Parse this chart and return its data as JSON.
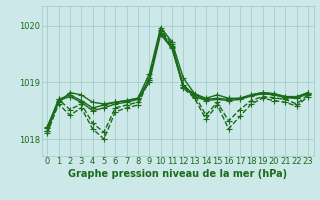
{
  "xlabel": "Graphe pression niveau de la mer (hPa)",
  "background_color": "#cce8e8",
  "grid_color": "#a0c8c8",
  "line_color": "#1a6b1a",
  "ylim": [
    1017.7,
    1020.35
  ],
  "xlim": [
    -0.5,
    23.5
  ],
  "yticks": [
    1018,
    1019,
    1020
  ],
  "xticks": [
    0,
    1,
    2,
    3,
    4,
    5,
    6,
    7,
    8,
    9,
    10,
    11,
    12,
    13,
    14,
    15,
    16,
    17,
    18,
    19,
    20,
    21,
    22,
    23
  ],
  "series": [
    [
      1018.15,
      1018.65,
      1018.82,
      1018.78,
      1018.65,
      1018.62,
      1018.65,
      1018.68,
      1018.72,
      1019.15,
      1019.97,
      1019.72,
      1019.08,
      1018.8,
      1018.72,
      1018.78,
      1018.72,
      1018.72,
      1018.78,
      1018.82,
      1018.8,
      1018.75,
      1018.75,
      1018.82
    ],
    [
      1018.2,
      1018.7,
      1018.78,
      1018.68,
      1018.55,
      1018.6,
      1018.65,
      1018.68,
      1018.72,
      1019.05,
      1019.88,
      1019.62,
      1018.95,
      1018.78,
      1018.7,
      1018.72,
      1018.7,
      1018.72,
      1018.78,
      1018.82,
      1018.8,
      1018.75,
      1018.72,
      1018.82
    ],
    [
      1018.22,
      1018.68,
      1018.75,
      1018.65,
      1018.5,
      1018.55,
      1018.62,
      1018.65,
      1018.7,
      1019.0,
      1019.85,
      1019.6,
      1018.92,
      1018.75,
      1018.68,
      1018.7,
      1018.68,
      1018.7,
      1018.76,
      1018.8,
      1018.78,
      1018.73,
      1018.72,
      1018.8
    ],
    [
      1018.15,
      1018.7,
      1018.52,
      1018.62,
      1018.28,
      1018.12,
      1018.55,
      1018.6,
      1018.65,
      1019.08,
      1019.93,
      1019.68,
      1018.95,
      1018.78,
      1018.42,
      1018.65,
      1018.32,
      1018.52,
      1018.68,
      1018.75,
      1018.73,
      1018.7,
      1018.62,
      1018.78
    ],
    [
      1018.1,
      1018.62,
      1018.42,
      1018.55,
      1018.18,
      1018.0,
      1018.48,
      1018.55,
      1018.6,
      1019.05,
      1019.9,
      1019.65,
      1018.9,
      1018.72,
      1018.35,
      1018.6,
      1018.18,
      1018.4,
      1018.62,
      1018.72,
      1018.68,
      1018.65,
      1018.58,
      1018.75
    ]
  ],
  "series_styles": [
    {
      "lw": 1.0,
      "ls": "-",
      "marker": "+",
      "ms": 4
    },
    {
      "lw": 1.0,
      "ls": "-",
      "marker": "+",
      "ms": 4
    },
    {
      "lw": 1.0,
      "ls": "-",
      "marker": "+",
      "ms": 4
    },
    {
      "lw": 1.0,
      "ls": "--",
      "marker": "+",
      "ms": 4
    },
    {
      "lw": 1.0,
      "ls": "--",
      "marker": "+",
      "ms": 4
    }
  ],
  "title_fontsize": 7,
  "tick_fontsize": 6
}
